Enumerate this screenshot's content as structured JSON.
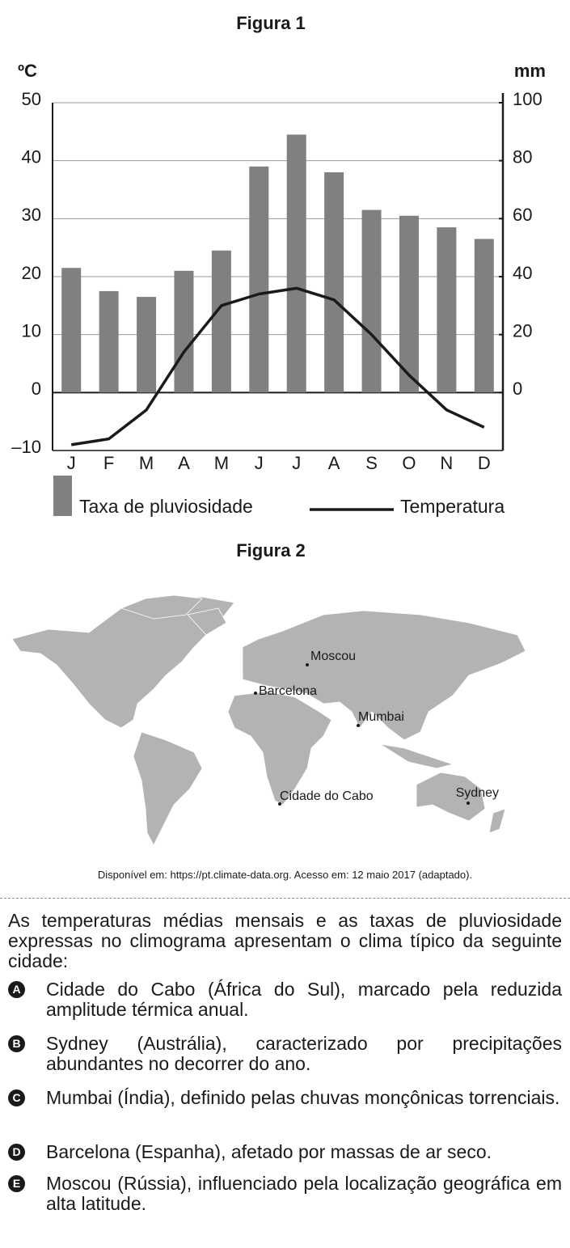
{
  "chart_data": {
    "type": "bar",
    "title": "Figura 1",
    "y_label": "ºC",
    "y2_label": "mm",
    "categories": [
      "J",
      "F",
      "M",
      "A",
      "M",
      "J",
      "J",
      "A",
      "S",
      "O",
      "N",
      "D"
    ],
    "series": [
      {
        "name": "Taxa de pluviosidade",
        "type": "bar",
        "axis": "y2",
        "color": "#808080",
        "values": [
          43,
          35,
          33,
          42,
          49,
          78,
          89,
          76,
          63,
          61,
          57,
          53
        ]
      },
      {
        "name": "Temperatura",
        "type": "line",
        "color": "#1a1a1a",
        "values": [
          -9,
          -8,
          -3,
          7,
          15,
          17,
          18,
          16,
          10,
          3,
          -3,
          -6
        ]
      }
    ],
    "ylim": [
      -10,
      50
    ],
    "yticks": [
      {
        "value": -10,
        "label": "–10"
      },
      0,
      10,
      20,
      30,
      40,
      50
    ],
    "y2lim": [
      -20,
      100
    ],
    "y2ticks": [
      0,
      20,
      40,
      60,
      80,
      100
    ],
    "grid": true
  },
  "figure2": {
    "title": "Figura 2",
    "cities": [
      "Moscou",
      "Barcelona",
      "Mumbai",
      "Cidade do Cabo",
      "Sydney"
    ]
  },
  "source": "Disponível em: https://pt.climate-data.org. Acesso em: 12 maio 2017 (adaptado).",
  "question": "As temperaturas médias mensais e as taxas de pluviosidade expressas no climograma apresentam o clima típico da seguinte cidade:",
  "options": [
    {
      "letter": "A",
      "text": "Cidade do Cabo (África do Sul), marcado pela reduzida amplitude térmica anual."
    },
    {
      "letter": "B",
      "text": "Sydney (Austrália), caracterizado por precipitações abundantes no decorrer do ano."
    },
    {
      "letter": "C",
      "text": "Mumbai (Índia), definido pelas chuvas monçônicas torrenciais."
    },
    {
      "letter": "D",
      "text": "Barcelona (Espanha), afetado por massas de ar seco."
    },
    {
      "letter": "E",
      "text": "Moscou (Rússia), influenciado pela localização geográfica em alta latitude."
    }
  ]
}
